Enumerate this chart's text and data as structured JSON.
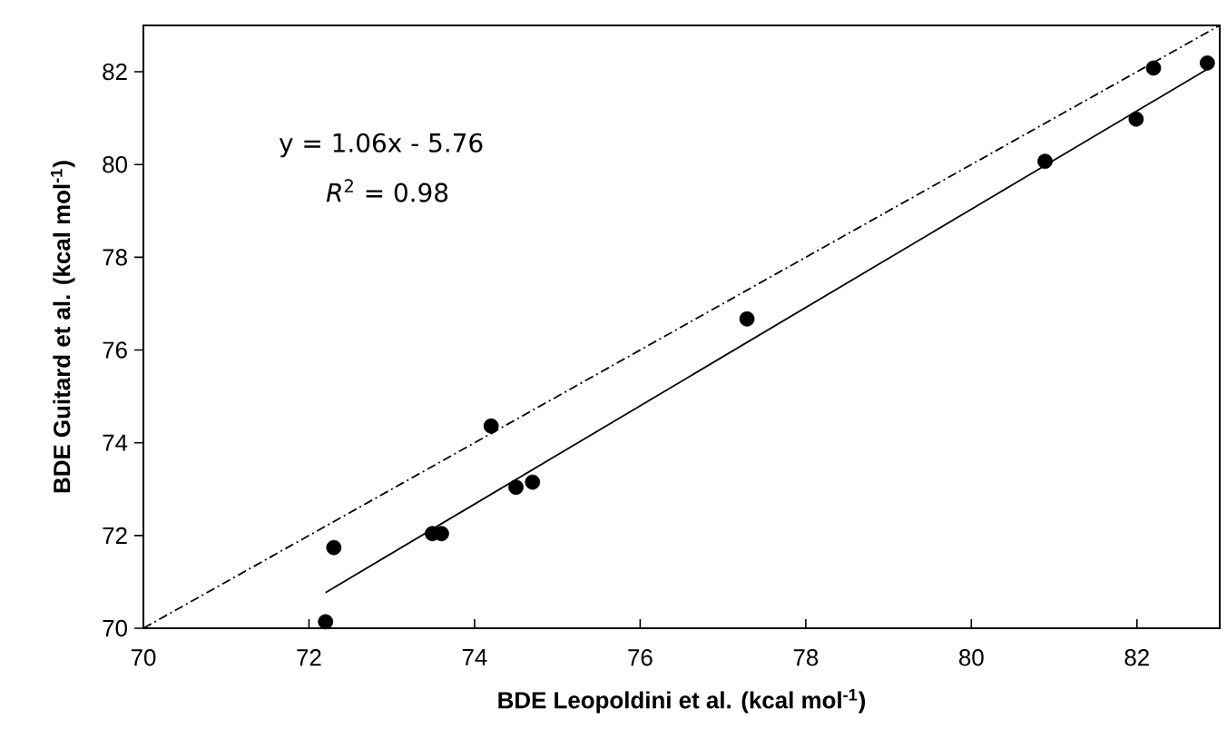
{
  "chart_data": {
    "type": "scatter",
    "xlabel": "BDE Leopoldini et al. (kcal mol$^{-1}$)",
    "ylabel": "BDE Guitard et al. (kcal mol$^{-1}$)",
    "xlim": [
      70,
      83
    ],
    "ylim": [
      70,
      83
    ],
    "xticks": [
      70,
      72,
      74,
      76,
      78,
      80,
      82
    ],
    "yticks": [
      70,
      72,
      74,
      76,
      78,
      80,
      82
    ],
    "grid": false,
    "series": [
      {
        "type": "scatter",
        "color": "#000000",
        "marker": "circle",
        "x": [
          72.2,
          72.3,
          73.49,
          73.6,
          74.2,
          74.5,
          74.7,
          77.29,
          80.89,
          81.99,
          82.2,
          82.85
        ],
        "values": [
          70.14,
          71.74,
          72.04,
          72.04,
          74.36,
          73.04,
          73.15,
          76.67,
          80.07,
          80.98,
          82.08,
          82.19
        ]
      },
      {
        "type": "line",
        "color": "#000000",
        "marker": "none",
        "line_style": "solid",
        "x": [
          72.2,
          82.9
        ],
        "values": [
          70.77,
          82.11
        ]
      },
      {
        "type": "line",
        "color": "#000000",
        "marker": "none",
        "line_style": "dashdot",
        "x": [
          70,
          83
        ],
        "values": [
          70,
          83
        ]
      }
    ],
    "annotations": [
      "y = 1.06x - 5.76",
      "*R*$^{2}$ = 0.98"
    ]
  }
}
